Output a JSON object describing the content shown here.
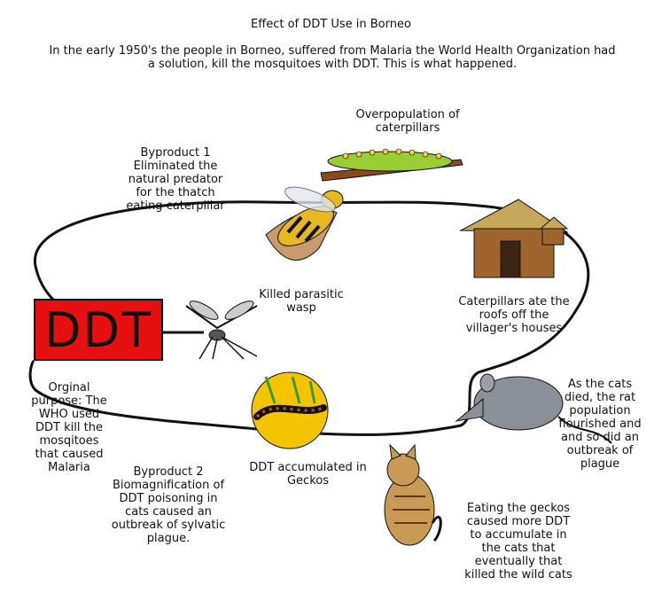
{
  "title": "Effect of DDT Use in Borneo",
  "intro": "In the early 1950's the people in Borneo, suffered from Malaria the World Health Organization had a solution, kill the mosquitoes with DDT. This is what happened.",
  "ddt_label": "DDT",
  "labels": {
    "overpopulation": "Overpopulation of\ncaterpillars",
    "byproduct1": "Byproduct 1\nEliminated the\nnatural predator\nfor the thatch\neating caterpillar",
    "killed_wasp": "Killed parasitic\nwasp",
    "roofs": "Caterpillars ate the\nroofs off the\nvillager's houses",
    "original_purpose": "Orginal\npurpose: The\nWHO used\nDDT kill the\nmosqitoes\nthat caused\nMalaria",
    "rats": "As the cats\ndied, the rat\npopulation\nflourished and\nand so did an\noutbreak of\nplague",
    "geckos": "DDT accumulated in\nGeckos",
    "byproduct2": "Byproduct 2\nBiomagnification of\nDDT poisoning in\ncats caused an\noutbreak of sylvatic\nplague.",
    "cats": "Eating the geckos\ncaused more DDT\nto accumulate in\nthe cats that\neventually that\nkilled the wild cats"
  },
  "colors": {
    "ddt_box": "#e61010",
    "line": "#111111",
    "caterpillar": "#9acd32",
    "wasp": "#e8b820",
    "hut": "#a0642d",
    "rat": "#8a8f98",
    "gecko_bg": "#f4c400",
    "cat": "#c99a55"
  },
  "icons": [
    "caterpillar-on-branch",
    "wasp",
    "thatched-hut",
    "mosquito",
    "rat",
    "gecko",
    "cat"
  ]
}
